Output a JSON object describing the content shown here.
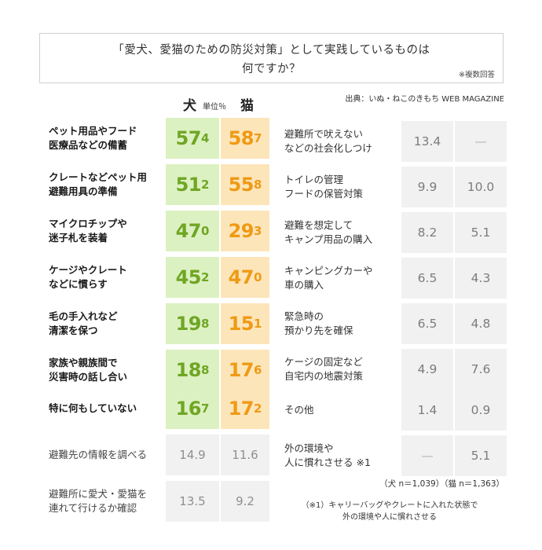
{
  "title": {
    "line1": "「愛犬、愛猫のための防災対策」として実践しているものは",
    "line2": "何ですか？",
    "note": "※複数回答"
  },
  "source": "出典：いぬ・ねこのきもち WEB MAGAZINE",
  "header": {
    "dog": "犬",
    "unit": "単位％",
    "cat": "猫"
  },
  "footer": {
    "sample": "（犬 n＝1,039）（猫 n＝1,363）",
    "footnote_line1": "（※1）キャリーバッグやクレートに入れた状態で",
    "footnote_line2": "外の環境や人に慣れさせる"
  },
  "chart_data": {
    "type": "table",
    "title": "「愛犬、愛猫のための防災対策」として実践しているものは何ですか？",
    "unit": "%",
    "series": [
      "犬",
      "猫"
    ],
    "rows": [
      {
        "label": "ペット用品やフード\n医療品などの備蓄",
        "dog": "57.4",
        "cat": "58.7"
      },
      {
        "label": "クレートなどペット用\n避難用具の準備",
        "dog": "51.2",
        "cat": "55.8"
      },
      {
        "label": "マイクロチップや\n迷子札を装着",
        "dog": "47.0",
        "cat": "29.3"
      },
      {
        "label": "ケージやクレート\nなどに慣らす",
        "dog": "45.2",
        "cat": "47.0"
      },
      {
        "label": "毛の手入れなど\n清潔を保つ",
        "dog": "19.8",
        "cat": "15.1"
      },
      {
        "label": "家族や親族間で\n災害時の話し合い",
        "dog": "18.8",
        "cat": "17.6"
      },
      {
        "label": "特に何もしていない",
        "dog": "16.7",
        "cat": "17.2"
      },
      {
        "label": "避難先の情報を調べる",
        "dog": "14.9",
        "cat": "11.6"
      },
      {
        "label": "避難所に愛犬・愛猫を\n連れて行けるか確認",
        "dog": "13.5",
        "cat": "9.2"
      },
      {
        "label": "避難所で吠えない\nなどの社会化しつけ",
        "dog": "13.4",
        "cat": "—"
      },
      {
        "label": "トイレの管理\nフードの保管対策",
        "dog": "9.9",
        "cat": "10.0"
      },
      {
        "label": "避難を想定して\nキャンプ用品の購入",
        "dog": "8.2",
        "cat": "5.1"
      },
      {
        "label": "キャンピングカーや\n車の購入",
        "dog": "6.5",
        "cat": "4.3"
      },
      {
        "label": "緊急時の\n預かり先を確保",
        "dog": "6.5",
        "cat": "4.8"
      },
      {
        "label": "ケージの固定など\n自宅内の地震対策",
        "dog": "4.9",
        "cat": "7.6"
      },
      {
        "label": "その他",
        "dog": "1.4",
        "cat": "0.9"
      },
      {
        "label": "外の環境や\n人に慣れさせる ※1",
        "dog": "—",
        "cat": "5.1"
      }
    ]
  }
}
